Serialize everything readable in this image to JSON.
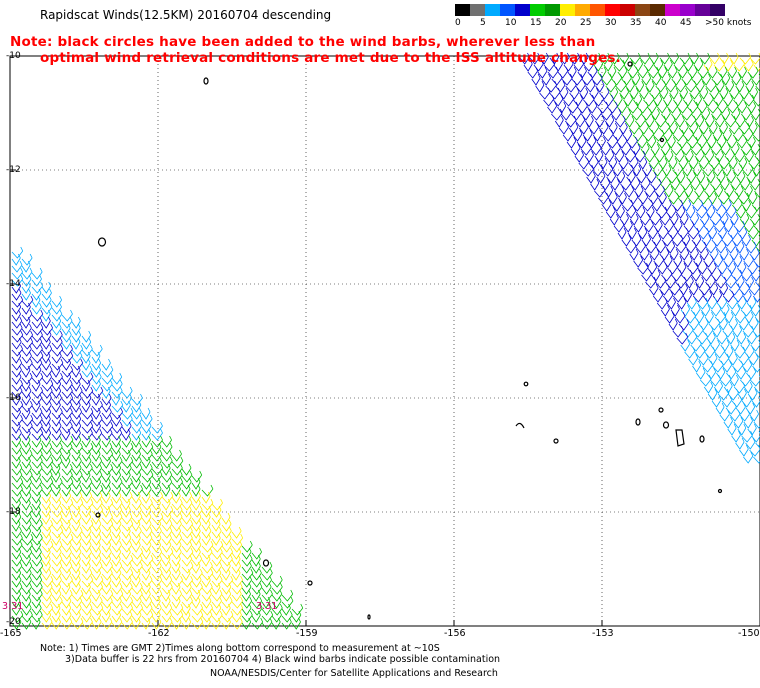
{
  "title": "Rapidscat Winds(12.5KM) 20160704 descending",
  "note_line1": "Note: black circles have been added to the wind barbs, wherever less than",
  "note_line2": "optimal wind retrieval conditions are met due to the ISS altitude changes.",
  "legend": {
    "labels": [
      "0",
      "5",
      "10",
      "15",
      "20",
      "25",
      "30",
      "35",
      "40",
      "45",
      ">50 knots"
    ],
    "colors": [
      "#000000",
      "#707070",
      "#00aaff",
      "#0055ff",
      "#0000cc",
      "#00cc00",
      "#009900",
      "#ffee00",
      "#ffaa00",
      "#ff5500",
      "#ff0000",
      "#cc0000",
      "#8b4513",
      "#5a2a00",
      "#cc00cc",
      "#9900cc",
      "#660099",
      "#330066"
    ]
  },
  "lat_labels": [
    "-10",
    "-12",
    "-14",
    "-16",
    "-18",
    "-20"
  ],
  "lon_labels": [
    "-165",
    "-162",
    "-159",
    "-156",
    "-153",
    "-150"
  ],
  "time_labels": [
    "3:31",
    "3:31"
  ],
  "footer_line1": "Note: 1) Times are GMT 2)Times along bottom correspond to measurement at ~10S",
  "footer_line2": "3)Data buffer is 22 hrs from 20160704 4) Black wind barbs indicate possible contamination",
  "footer_line3": "NOAA/NESDIS/Center for Satellite Applications and Research"
}
